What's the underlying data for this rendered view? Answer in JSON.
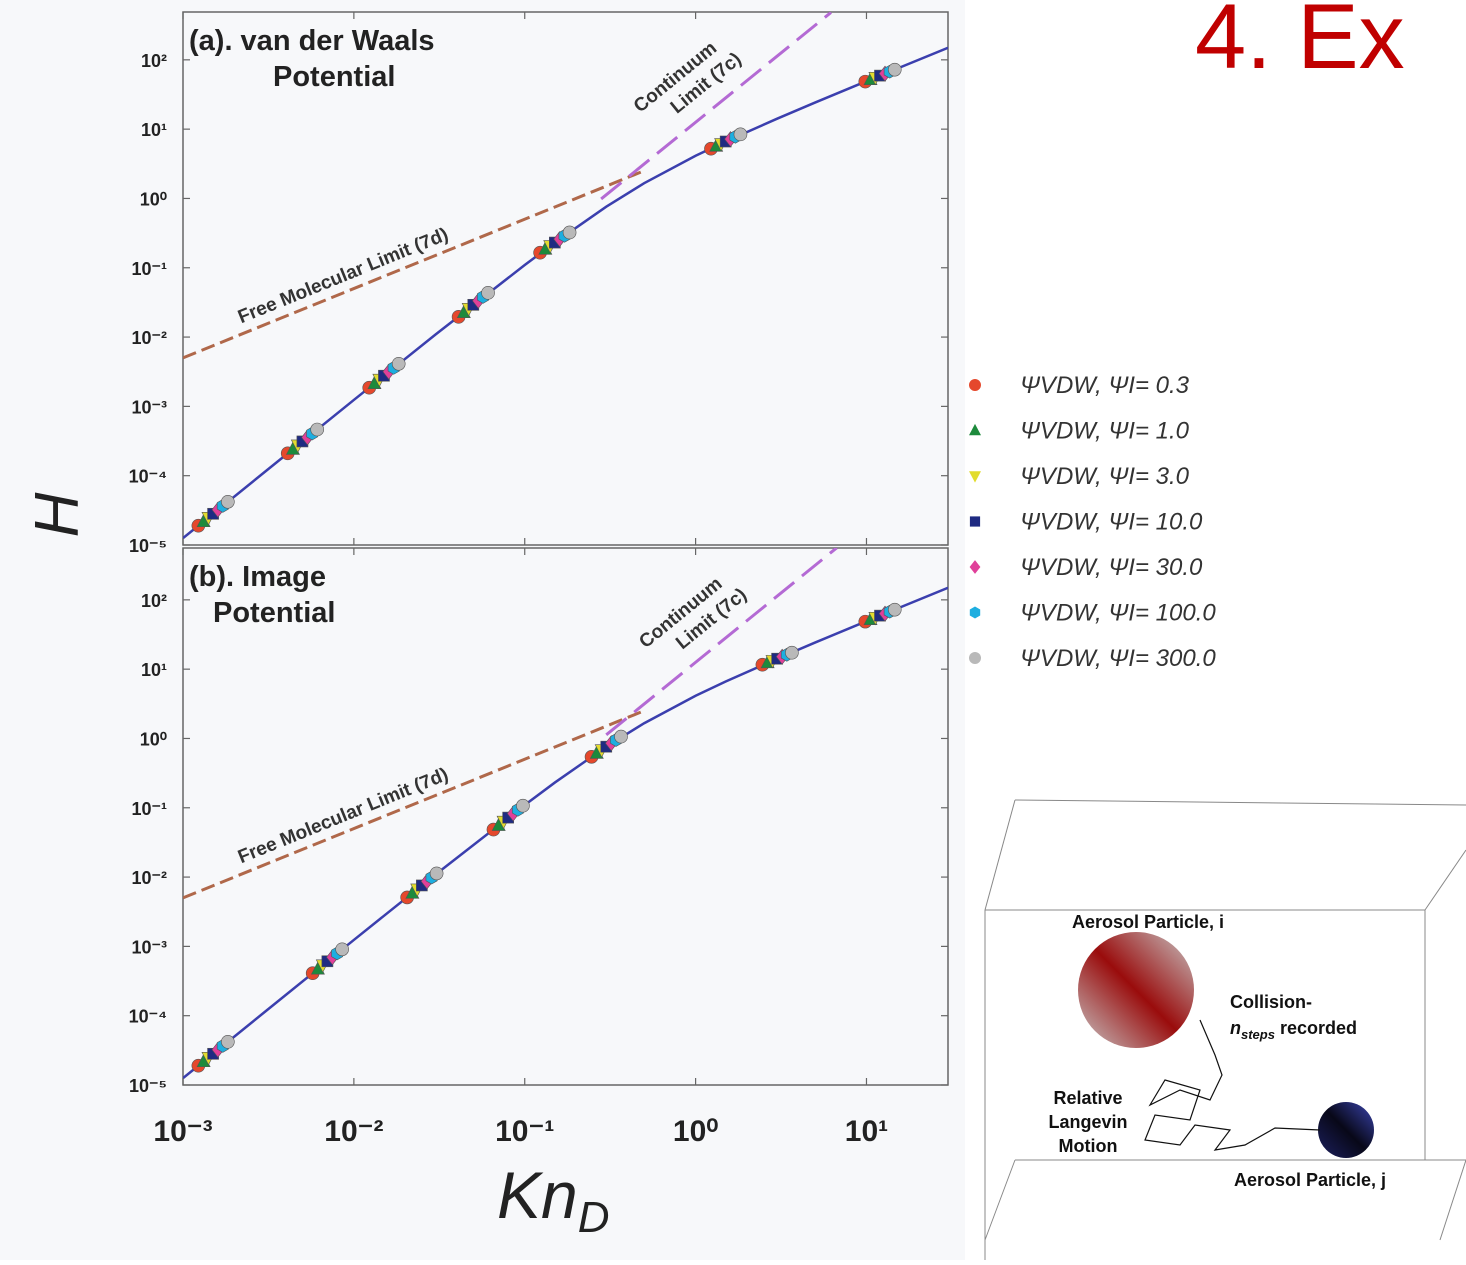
{
  "slide_title": "4. Ex",
  "y_label": "H",
  "x_label": "Kn",
  "x_label_subscript": "D",
  "chart_data": [
    {
      "type": "scatter",
      "title_lines": [
        "(a).  van der Waals",
        "Potential"
      ],
      "log_x": true,
      "log_y": true,
      "xlim": [
        0.001,
        30
      ],
      "ylim": [
        1e-05,
        490
      ],
      "yticks": [
        {
          "value": 100,
          "label": "10²"
        },
        {
          "value": 10,
          "label": "10¹"
        },
        {
          "value": 1,
          "label": "10⁰"
        },
        {
          "value": 0.1,
          "label": "10⁻¹"
        },
        {
          "value": 0.01,
          "label": "10⁻²"
        },
        {
          "value": 0.001,
          "label": "10⁻³"
        },
        {
          "value": 0.0001,
          "label": "10⁻⁴"
        },
        {
          "value": 1e-05,
          "label": "10⁻⁵"
        }
      ],
      "fit": {
        "color": "#3b3fae",
        "x": [
          0.001,
          0.003,
          0.01,
          0.03,
          0.1,
          0.15,
          0.3,
          0.5,
          1,
          1.5,
          3,
          5,
          10,
          30
        ],
        "values": [
          1.255e-05,
          0.0001126,
          0.001239,
          0.01084,
          0.1096,
          0.231,
          0.761,
          1.66,
          4.13,
          6.63,
          14.15,
          24.2,
          49.2,
          149.5
        ]
      },
      "limits": [
        {
          "label_lines": [
            "Free Molecular Limit (7d)"
          ],
          "color": "#b0684a",
          "x": [
            0.001,
            0.5
          ],
          "values": [
            0.00501,
            2.51
          ]
        },
        {
          "label_lines": [
            "Continuum",
            "Limit (7c)"
          ],
          "color": "#b46ad4",
          "x": [
            0.28,
            6.2
          ],
          "values": [
            0.985,
            483
          ]
        }
      ],
      "series": [
        {
          "name": "ΨVDW, ΨI= 0.3",
          "color": "#e5482c",
          "marker": "circle",
          "x": [
            0.00123,
            0.0041,
            0.0123,
            0.041,
            0.123,
            1.23,
            9.84
          ],
          "values": [
            1.9e-05,
            0.00021,
            0.00186,
            0.0196,
            0.165,
            5.22,
            48.5
          ]
        },
        {
          "name": "ΨVDW, ΨI= 1.0",
          "color": "#1d8a3c",
          "marker": "triangle-up",
          "x": [
            0.00132,
            0.0044,
            0.0132,
            0.044,
            0.132,
            1.32,
            10.56
          ],
          "values": [
            2.18e-05,
            0.000241,
            0.00214,
            0.0226,
            0.186,
            5.69,
            52.1
          ]
        },
        {
          "name": "ΨVDW, ΨI= 3.0",
          "color": "#e2dc2e",
          "marker": "triangle-down",
          "x": [
            0.00141,
            0.0047,
            0.0141,
            0.047,
            0.141,
            1.41,
            11.28
          ],
          "values": [
            2.49e-05,
            0.000276,
            0.00245,
            0.0258,
            0.208,
            6.16,
            55.6
          ]
        },
        {
          "name": "ΨVDW, ΨI= 10.0",
          "color": "#1f2b82",
          "marker": "square",
          "x": [
            0.0015,
            0.005,
            0.015,
            0.05,
            0.15,
            1.5,
            12
          ],
          "values": [
            2.82e-05,
            0.000312,
            0.00277,
            0.0292,
            0.231,
            6.63,
            59.2
          ]
        },
        {
          "name": "ΨVDW, ΨI= 30.0",
          "color": "#e0409a",
          "marker": "diamond",
          "x": [
            0.0016,
            0.00535,
            0.016,
            0.0535,
            0.16,
            1.6,
            12.84
          ],
          "values": [
            3.23e-05,
            0.000357,
            0.00317,
            0.0334,
            0.259,
            7.19,
            63.3
          ]
        },
        {
          "name": "ΨVDW, ΨI= 100.0",
          "color": "#1eaee0",
          "marker": "hexagon",
          "x": [
            0.00171,
            0.0057,
            0.0171,
            0.057,
            0.171,
            1.71,
            13.68
          ],
          "values": [
            3.67e-05,
            0.000406,
            0.0036,
            0.038,
            0.289,
            7.76,
            67.5
          ]
        },
        {
          "name": "ΨVDW, ΨI= 300.0",
          "color": "#b9b9b9",
          "marker": "circle",
          "x": [
            0.00183,
            0.0061,
            0.0183,
            0.061,
            0.183,
            1.83,
            14.64
          ],
          "values": [
            4.2e-05,
            0.000464,
            0.00412,
            0.0435,
            0.323,
            8.42,
            72.2
          ]
        }
      ]
    },
    {
      "type": "scatter",
      "title_lines": [
        "(b).  Image",
        "Potential"
      ],
      "log_x": true,
      "log_y": true,
      "xlim": [
        0.001,
        30
      ],
      "ylim": [
        1e-05,
        560
      ],
      "xticks": [
        {
          "value": 0.001,
          "label": "10⁻³"
        },
        {
          "value": 0.01,
          "label": "10⁻²"
        },
        {
          "value": 0.1,
          "label": "10⁻¹"
        },
        {
          "value": 1,
          "label": "10⁰"
        },
        {
          "value": 10,
          "label": "10¹"
        }
      ],
      "yticks": [
        {
          "value": 100,
          "label": "10²"
        },
        {
          "value": 10,
          "label": "10¹"
        },
        {
          "value": 1,
          "label": "10⁰"
        },
        {
          "value": 0.1,
          "label": "10⁻¹"
        },
        {
          "value": 0.01,
          "label": "10⁻²"
        },
        {
          "value": 0.001,
          "label": "10⁻³"
        },
        {
          "value": 0.0001,
          "label": "10⁻⁴"
        },
        {
          "value": 1e-05,
          "label": "10⁻⁵"
        }
      ],
      "fit": {
        "color": "#3b3fae",
        "x": [
          0.001,
          0.003,
          0.01,
          0.03,
          0.1,
          0.15,
          0.3,
          0.5,
          1,
          1.5,
          3,
          5,
          10,
          30
        ],
        "values": [
          1.255e-05,
          0.0001126,
          0.001239,
          0.01084,
          0.1096,
          0.231,
          0.761,
          1.66,
          4.13,
          6.63,
          14.15,
          24.2,
          49.2,
          149.5
        ]
      },
      "limits": [
        {
          "label_lines": [
            "Free Molecular Limit (7d)"
          ],
          "color": "#b0684a",
          "x": [
            0.001,
            0.5
          ],
          "values": [
            0.00501,
            2.51
          ]
        },
        {
          "label_lines": [
            "Continuum",
            "Limit (7c)"
          ],
          "color": "#b46ad4",
          "x": [
            0.3,
            6.7
          ],
          "values": [
            1.13,
            564
          ]
        }
      ],
      "series": [
        {
          "color": "#e5482c",
          "marker": "circle",
          "x": [
            0.00123,
            0.00574,
            0.0205,
            0.0656,
            0.246,
            2.46,
            9.84
          ],
          "values": [
            1.9e-05,
            0.00041,
            0.00509,
            0.0485,
            0.543,
            11.6,
            48.5
          ]
        },
        {
          "color": "#1d8a3c",
          "marker": "triangle-up",
          "x": [
            0.00132,
            0.00616,
            0.022,
            0.0704,
            0.264,
            2.64,
            10.56
          ],
          "values": [
            2.18e-05,
            0.000472,
            0.00586,
            0.0558,
            0.613,
            12.45,
            52.1
          ]
        },
        {
          "color": "#e2dc2e",
          "marker": "triangle-down",
          "x": [
            0.00141,
            0.00658,
            0.0235,
            0.0752,
            0.282,
            2.82,
            11.28
          ],
          "values": [
            2.49e-05,
            0.000539,
            0.00669,
            0.0637,
            0.685,
            13.3,
            55.6
          ]
        },
        {
          "color": "#1f2b82",
          "marker": "square",
          "x": [
            0.0015,
            0.007,
            0.025,
            0.08,
            0.3,
            3,
            12
          ],
          "values": [
            2.82e-05,
            0.00061,
            0.00757,
            0.0721,
            0.761,
            14.15,
            59.2
          ]
        },
        {
          "color": "#e0409a",
          "marker": "diamond",
          "x": [
            0.0016,
            0.00749,
            0.0268,
            0.0856,
            0.321,
            3.21,
            12.84
          ],
          "values": [
            3.23e-05,
            0.000698,
            0.00867,
            0.0826,
            0.854,
            15.14,
            63.3
          ]
        },
        {
          "color": "#1eaee0",
          "marker": "hexagon",
          "x": [
            0.00171,
            0.00798,
            0.0285,
            0.0912,
            0.342,
            3.42,
            13.68
          ],
          "values": [
            3.67e-05,
            0.000793,
            0.00984,
            0.0937,
            0.951,
            16.13,
            67.5
          ]
        },
        {
          "color": "#b9b9b9",
          "marker": "circle",
          "x": [
            0.00183,
            0.00854,
            0.0305,
            0.0976,
            0.366,
            3.66,
            14.64
          ],
          "values": [
            4.2e-05,
            0.000908,
            0.0113,
            0.107,
            1.065,
            17.26,
            72.2
          ]
        }
      ]
    }
  ],
  "diagram": {
    "particle_i": "Aerosol Particle, i",
    "collision_line": "Collision-",
    "n": "n",
    "steps": "steps",
    "recorded": " recorded",
    "motion_lines": [
      "Relative",
      "Langevin",
      "Motion"
    ],
    "particle_j": "Aerosol Particle, j"
  }
}
